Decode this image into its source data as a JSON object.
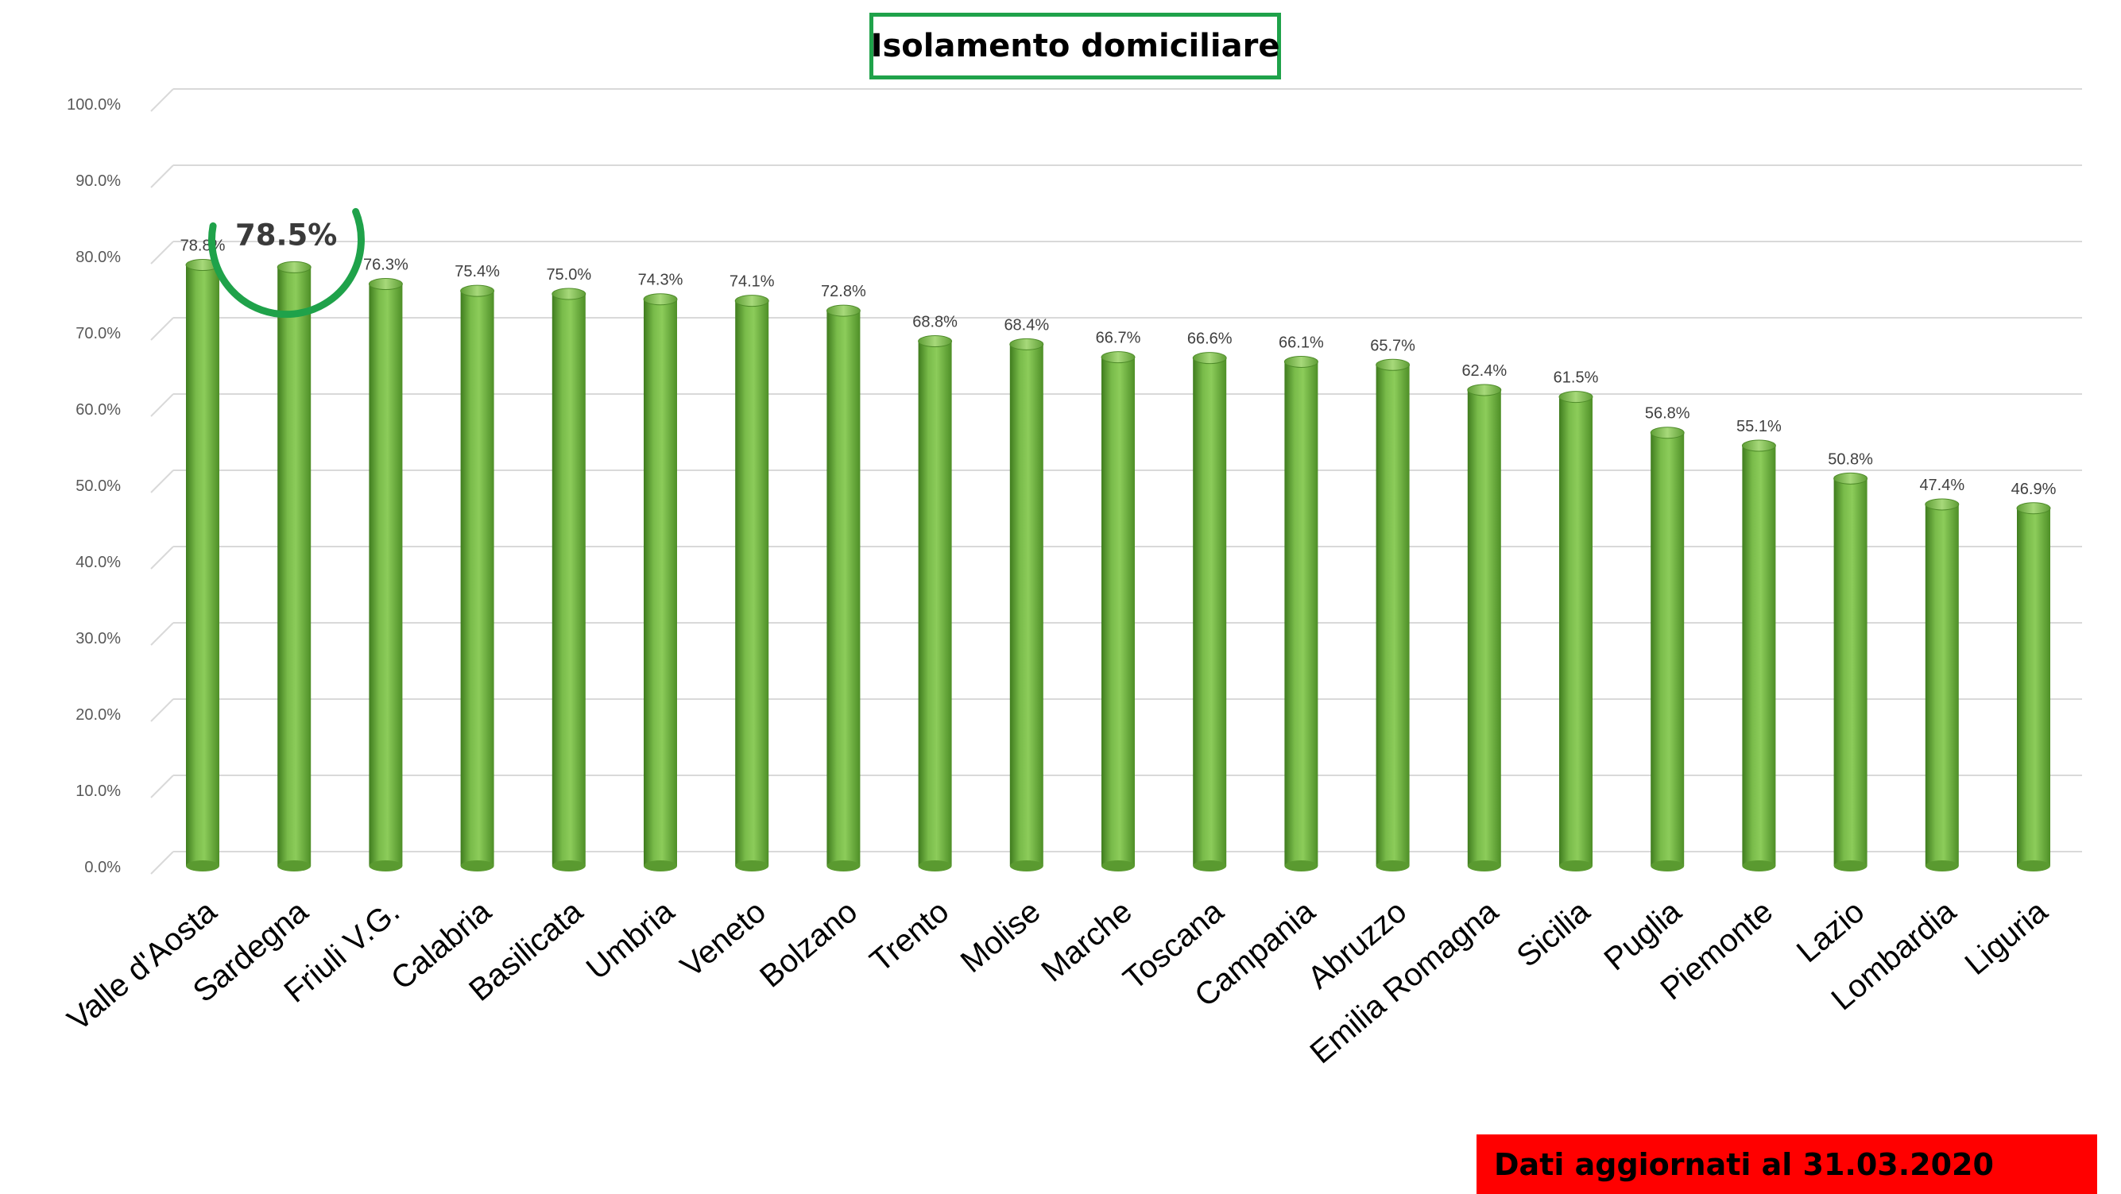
{
  "header": {
    "title": "Isolamento domiciliare"
  },
  "footer": {
    "note": "Dati aggiornati al 31.03.2020"
  },
  "callout": {
    "label": "78.5%",
    "category": "Sardegna",
    "color": "#1fa24a"
  },
  "colors": {
    "bar": "#6fb043",
    "bar_dark": "#3f7c1e",
    "bar_light": "#9fd66a",
    "grid": "#d9d9d9",
    "tick_text": "#595959",
    "footer_bg": "#ff0000",
    "title_border": "#1fa24a"
  },
  "chart_data": {
    "type": "bar",
    "title": "Isolamento domiciliare",
    "xlabel": "",
    "ylabel": "",
    "ylim": [
      0,
      100
    ],
    "yticks": [
      "0.0%",
      "10.0%",
      "20.0%",
      "30.0%",
      "40.0%",
      "50.0%",
      "60.0%",
      "70.0%",
      "80.0%",
      "90.0%",
      "100.0%"
    ],
    "grid": true,
    "legend": "none",
    "categories": [
      "Valle d'Aosta",
      "Sardegna",
      "Friuli V.G.",
      "Calabria",
      "Basilicata",
      "Umbria",
      "Veneto",
      "Bolzano",
      "Trento",
      "Molise",
      "Marche",
      "Toscana",
      "Campania",
      "Abruzzo",
      "Emilia Romagna",
      "Sicilia",
      "Puglia",
      "Piemonte",
      "Lazio",
      "Lombardia",
      "Liguria"
    ],
    "values": [
      78.8,
      78.5,
      76.3,
      75.4,
      75.0,
      74.3,
      74.1,
      72.8,
      68.8,
      68.4,
      66.7,
      66.6,
      66.1,
      65.7,
      62.4,
      61.5,
      56.8,
      55.1,
      50.8,
      47.4,
      46.9
    ],
    "data_labels": [
      "78.8%",
      "",
      "76.3%",
      "75.4%",
      "75.0%",
      "74.3%",
      "74.1%",
      "72.8%",
      "68.8%",
      "68.4%",
      "66.7%",
      "66.6%",
      "66.1%",
      "65.7%",
      "62.4%",
      "61.5%",
      "56.8%",
      "55.1%",
      "50.8%",
      "47.4%",
      "46.9%"
    ]
  }
}
